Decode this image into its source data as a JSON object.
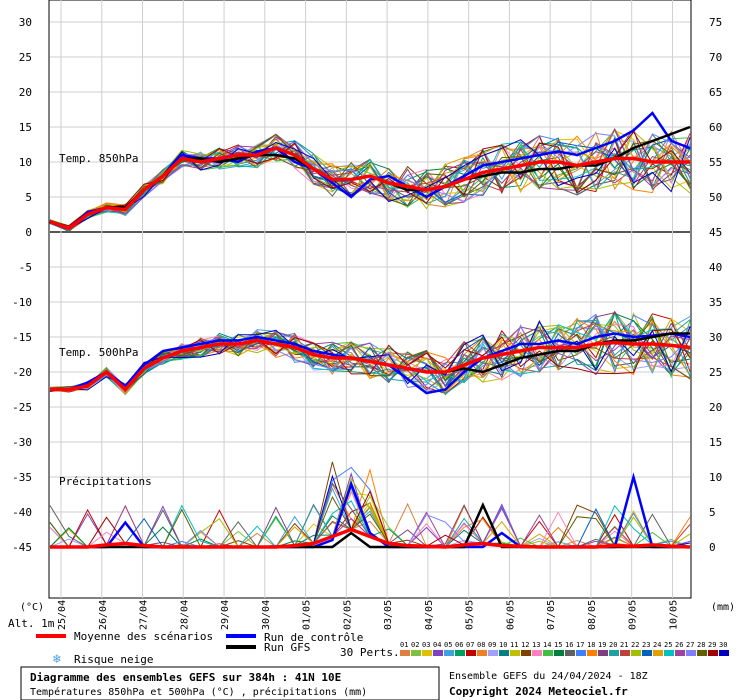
{
  "chart_data": {
    "type": "line",
    "x_ticks": [
      "25/04",
      "26/04",
      "27/04",
      "28/04",
      "29/04",
      "30/04",
      "01/05",
      "02/05",
      "03/05",
      "04/05",
      "05/05",
      "06/05",
      "07/05",
      "08/05",
      "09/05",
      "10/05"
    ],
    "left_axis_unit": "(°C)",
    "right_axis_unit": "(mm)",
    "left_ticks": [
      30,
      25,
      20,
      15,
      10,
      5,
      0,
      -5,
      -10,
      -15,
      -20,
      -25,
      -30,
      -35,
      -40,
      -45
    ],
    "right_ticks": [
      75,
      70,
      65,
      60,
      55,
      50,
      45,
      40,
      35,
      30,
      25,
      20,
      15,
      10,
      5,
      0
    ],
    "ylim_left": [
      -45,
      30
    ],
    "panel_labels": {
      "t850": "Temp. 850hPa",
      "t500": "Temp. 500hPa",
      "precip": "Précipitations"
    },
    "alt_label": "Alt. 1m",
    "series": [
      {
        "name": "Moyenne des scénarios",
        "color": "#ff0000",
        "t850": [
          1.5,
          0.5,
          2.5,
          3.5,
          3.2,
          6,
          8,
          10.5,
          10,
          10.5,
          11,
          11,
          12,
          11,
          9,
          7.5,
          7.5,
          8,
          7,
          6.5,
          6,
          6.5,
          7.5,
          8.5,
          9,
          9.5,
          10,
          10,
          9.5,
          10,
          10.5,
          10.5,
          10,
          10,
          10
        ],
        "t500": [
          -22.5,
          -22.5,
          -22,
          -20,
          -22.5,
          -19.5,
          -18,
          -17,
          -16.5,
          -16,
          -16,
          -15.5,
          -16,
          -16.5,
          -17.5,
          -18,
          -18,
          -18.5,
          -19,
          -19.5,
          -20,
          -20,
          -19,
          -18,
          -17.5,
          -17,
          -16.5,
          -16.5,
          -16.5,
          -16,
          -15.8,
          -16,
          -16,
          -16.2,
          -16.5
        ],
        "precip": [
          0,
          0,
          0,
          0.3,
          0.5,
          0.2,
          0,
          0,
          0,
          0,
          0,
          0,
          0,
          0.2,
          0.5,
          1.5,
          2.5,
          1.5,
          0.5,
          0.2,
          0.1,
          0,
          0.3,
          0.5,
          0.2,
          0.1,
          0,
          0,
          0,
          0,
          0.2,
          0.1,
          0.3,
          0.1,
          0
        ]
      },
      {
        "name": "Run de contrôle",
        "color": "#0000ff",
        "t850": [
          1.5,
          0.5,
          2.8,
          3.5,
          3.5,
          6,
          8,
          11,
          10.5,
          10.5,
          10,
          11.5,
          12,
          10,
          9,
          7,
          5,
          7.5,
          8,
          6.5,
          5,
          6.5,
          8,
          9.5,
          10,
          10.5,
          11,
          11.5,
          11,
          12,
          13,
          14.5,
          17,
          13,
          12
        ],
        "t500": [
          -22.5,
          -22.5,
          -21.5,
          -20,
          -22,
          -19,
          -17,
          -16.5,
          -16,
          -15.5,
          -15.5,
          -15,
          -15.5,
          -16,
          -17,
          -17.5,
          -18,
          -18.5,
          -19,
          -21,
          -23,
          -22.5,
          -20,
          -18,
          -17,
          -16,
          -16,
          -15.5,
          -16,
          -15,
          -14.5,
          -15,
          -14.8,
          -14.5,
          -15
        ],
        "precip": [
          0,
          0,
          0,
          0,
          3.5,
          0,
          0,
          0,
          0,
          0,
          0,
          0,
          0,
          0,
          0,
          1,
          9,
          2,
          0,
          0,
          0,
          0,
          0,
          0,
          2,
          0,
          0,
          0,
          0,
          0,
          0,
          10,
          0,
          0,
          0
        ]
      },
      {
        "name": "Run GFS",
        "color": "#000000",
        "t850": [
          1.5,
          0.5,
          2.5,
          3.5,
          3.5,
          6,
          8,
          10.5,
          10.5,
          10,
          10.5,
          11,
          11,
          10.5,
          9,
          7.5,
          7.5,
          8,
          7,
          6,
          6,
          6.5,
          7.5,
          8,
          8.5,
          8.5,
          9,
          9,
          9.5,
          9.5,
          10.5,
          12,
          13,
          14,
          15
        ],
        "t500": [
          -22.5,
          -22.5,
          -22,
          -20,
          -22.5,
          -19.5,
          -18,
          -17,
          -16.5,
          -16,
          -16,
          -15.5,
          -16,
          -16.5,
          -17.5,
          -18,
          -18,
          -18.5,
          -19,
          -19.5,
          -20,
          -20,
          -19.5,
          -20,
          -19,
          -18,
          -17.5,
          -17,
          -17,
          -16,
          -15.5,
          -15.5,
          -15,
          -14.5,
          -14.5
        ],
        "precip": [
          0,
          0,
          0,
          0,
          0,
          0,
          0,
          0,
          0,
          0,
          0,
          0,
          0,
          0,
          0,
          0,
          2,
          0,
          0,
          0,
          0,
          0,
          0,
          6,
          0,
          0,
          0,
          0,
          0,
          0,
          0,
          0,
          0,
          0,
          0
        ]
      }
    ],
    "perturbations": {
      "count": 30,
      "labels": [
        "01",
        "02",
        "03",
        "04",
        "05",
        "06",
        "07",
        "08",
        "09",
        "10",
        "11",
        "12",
        "13",
        "14",
        "15",
        "16",
        "17",
        "18",
        "19",
        "20",
        "21",
        "22",
        "23",
        "24",
        "25",
        "26",
        "27",
        "28",
        "29",
        "30"
      ],
      "colors": [
        "#e08040",
        "#80c040",
        "#e0c000",
        "#8040c0",
        "#40a0e0",
        "#00a060",
        "#c00000",
        "#f08020",
        "#a0a0ff",
        "#008080",
        "#c0c000",
        "#804000",
        "#ff80c0",
        "#40c040",
        "#008040",
        "#606060",
        "#4080ff",
        "#ff8000",
        "#804080",
        "#20a0a0",
        "#c04040",
        "#a0c000",
        "#0060c0",
        "#e0a000",
        "#00c0c0",
        "#a040a0",
        "#8080ff",
        "#606000",
        "#a00000",
        "#0000c0"
      ]
    }
  },
  "legend": {
    "mean": "Moyenne des scénarios",
    "control": "Run de contrôle",
    "gfs": "Run GFS",
    "snow": "Risque neige",
    "perts": "30 Perts."
  },
  "footer": {
    "title": "Diagramme des ensembles GEFS sur 384h : 41N 10E",
    "subtitle": "Températures 850hPa et 500hPa (°C) , précipitations (mm)",
    "run": "Ensemble GEFS du 24/04/2024 - 18Z",
    "copyright": "Copyright 2024 Meteociel.fr"
  }
}
